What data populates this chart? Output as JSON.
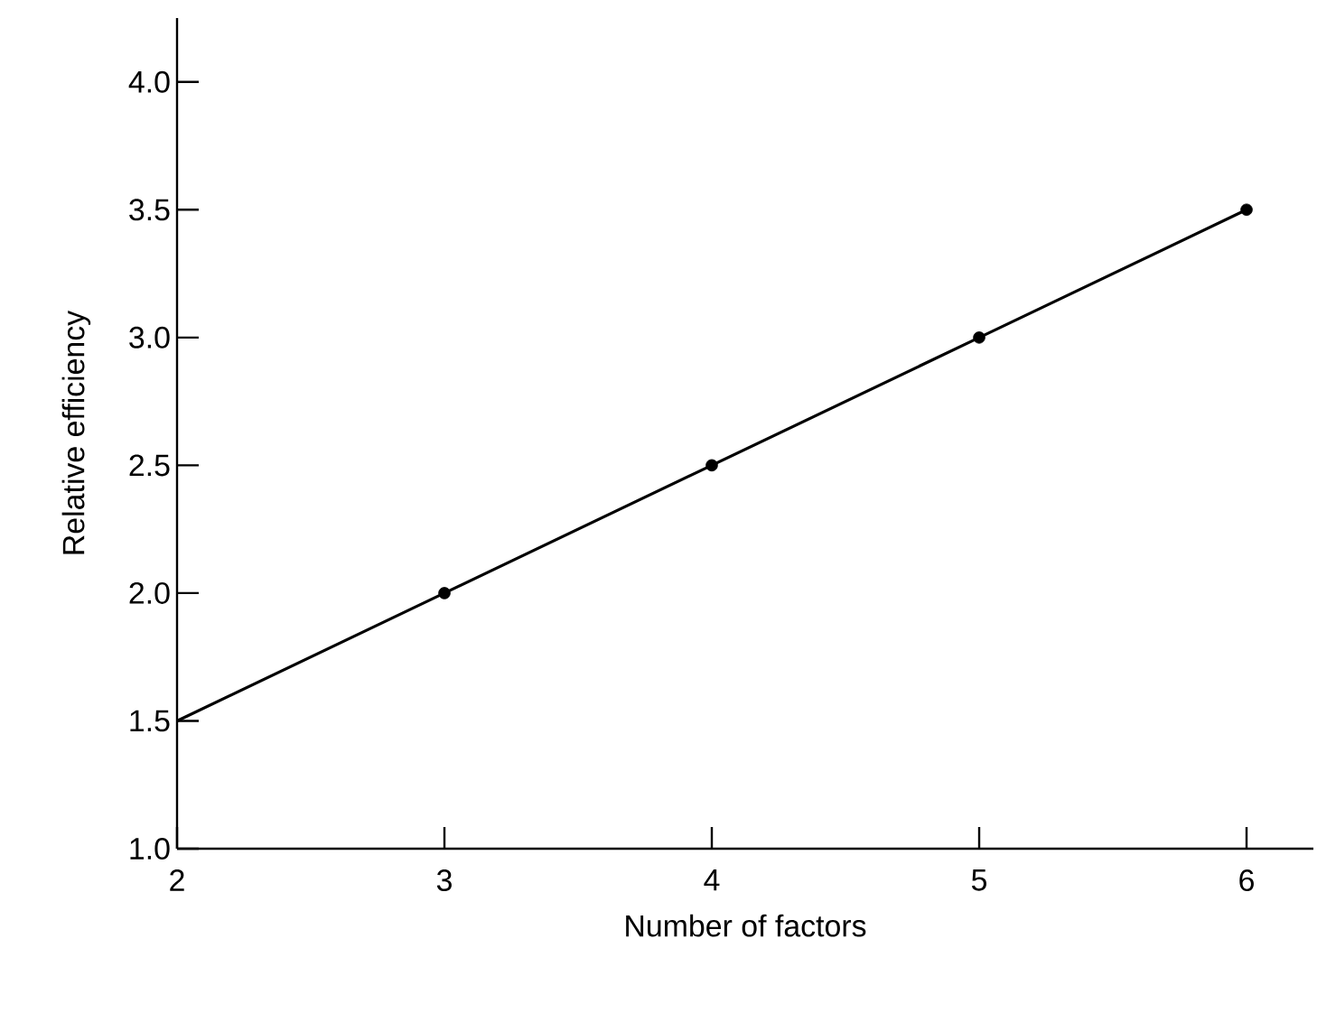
{
  "chart_data": {
    "type": "line",
    "xlabel": "Number of factors",
    "ylabel": "Relative efficiency",
    "series": [
      {
        "color": "#000000",
        "marker": "none",
        "x": [
          2,
          3,
          4,
          5,
          6
        ],
        "values": [
          1.5,
          2.0,
          2.5,
          3.0,
          3.5
        ]
      },
      {
        "type": "scatter",
        "color": "#000000",
        "marker": "circle",
        "x": [
          3,
          4,
          5,
          6
        ],
        "values": [
          2.0,
          2.5,
          3.0,
          3.5
        ]
      }
    ],
    "xlim": [
      2,
      6.25
    ],
    "ylim": [
      1.0,
      4.25
    ],
    "xticks": [
      2,
      3,
      4,
      5,
      6
    ],
    "yticks": [
      {
        "value": 1.0,
        "label": "1.0"
      },
      {
        "value": 1.5,
        "label": "1.5"
      },
      {
        "value": 2.0,
        "label": "2.0"
      },
      {
        "value": 2.5,
        "label": "2.5"
      },
      {
        "value": 3.0,
        "label": "3.0"
      },
      {
        "value": 3.5,
        "label": "3.5"
      },
      {
        "value": 4.0,
        "label": "4.0"
      }
    ],
    "grid": false
  }
}
